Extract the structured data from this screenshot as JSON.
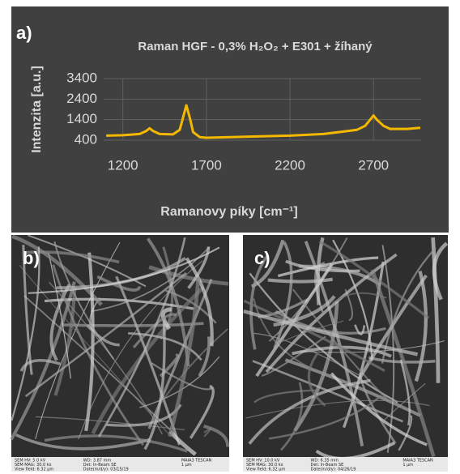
{
  "chart_data": {
    "type": "line",
    "panel_label": "a)",
    "title": "Raman HGF - 0,3% H₂O₂ + E301 + žíhaný",
    "x_label": "Ramanovy píky [cm⁻¹]",
    "y_label": "Intenzita [a.u.]",
    "x": [
      1100,
      1200,
      1300,
      1340,
      1360,
      1380,
      1420,
      1500,
      1540,
      1560,
      1580,
      1600,
      1620,
      1660,
      1700,
      1800,
      2000,
      2200,
      2400,
      2500,
      2600,
      2650,
      2680,
      2700,
      2720,
      2760,
      2800,
      2900,
      2980
    ],
    "values": [
      620,
      640,
      700,
      850,
      980,
      850,
      700,
      680,
      900,
      1500,
      2100,
      1500,
      800,
      550,
      520,
      540,
      580,
      620,
      700,
      800,
      900,
      1100,
      1400,
      1600,
      1400,
      1100,
      950,
      950,
      1000
    ],
    "color": "#f5b800",
    "xlim": [
      1085,
      2985
    ],
    "xticks": [
      1200,
      1700,
      2200,
      2700
    ],
    "ylim": [
      400,
      3400
    ],
    "yticks": [
      400,
      1400,
      2400,
      3400
    ],
    "grid": true
  },
  "images": [
    {
      "label": "b)",
      "info": [
        [
          "SEM HV: 5.0 kV",
          "WD: 3.87 mm",
          "MAIA3 TESCAN"
        ],
        [
          "SEM MAG: 30.0 kx",
          "Det: In-Beam SE",
          "1 μm"
        ],
        [
          "View field: 6.32 μm",
          "Date(m/d/y): 03/15/19"
        ]
      ]
    },
    {
      "label": "c)",
      "info": [
        [
          "SEM HV: 10.0 kV",
          "WD: 6.35 mm",
          "MAIA3 TESCAN"
        ],
        [
          "SEM MAG: 30.0 kx",
          "Det: In-Beam SE",
          "1 μm"
        ],
        [
          "View field: 6.32 μm",
          "Date(m/d/y): 04/26/19"
        ]
      ]
    }
  ]
}
